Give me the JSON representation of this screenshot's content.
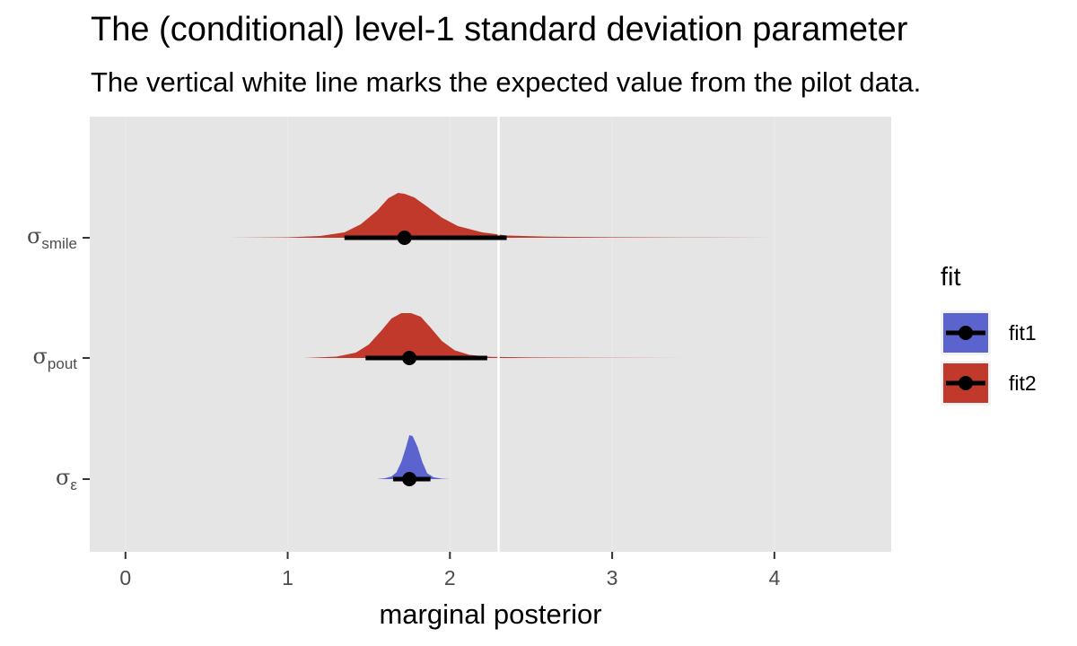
{
  "chart_data": {
    "type": "ridgeline",
    "title": "The (conditional) level-1 standard deviation parameter",
    "subtitle": "The vertical white line marks the expected value from the pilot data.",
    "xlabel": "marginal posterior",
    "ylabel": "",
    "xlim": [
      -0.22,
      4.72
    ],
    "x_ticks": [
      0,
      1,
      2,
      3,
      4
    ],
    "reference_line": 2.3,
    "legend": {
      "title": "fit",
      "position": "right",
      "entries": [
        {
          "name": "fit1",
          "color": "#5b63cf"
        },
        {
          "name": "fit2",
          "color": "#c1392b"
        }
      ]
    },
    "rows": [
      {
        "label_main": "σ",
        "label_sub": "smile",
        "fit": "fit2",
        "color": "#c1392b",
        "point": 1.72,
        "interval": [
          1.35,
          2.35
        ],
        "density_x": [
          0.6,
          1.0,
          1.2,
          1.35,
          1.45,
          1.55,
          1.62,
          1.68,
          1.72,
          1.78,
          1.85,
          1.95,
          2.05,
          2.2,
          2.35,
          2.6,
          3.0,
          3.3,
          3.6,
          4.0
        ],
        "density_height": [
          0.0,
          0.01,
          0.04,
          0.12,
          0.3,
          0.6,
          0.88,
          1.0,
          0.98,
          0.9,
          0.72,
          0.45,
          0.26,
          0.12,
          0.05,
          0.025,
          0.012,
          0.008,
          0.004,
          0.0
        ]
      },
      {
        "label_main": "σ",
        "label_sub": "pout",
        "fit": "fit2",
        "color": "#c1392b",
        "point": 1.75,
        "interval": [
          1.48,
          2.23
        ],
        "density_x": [
          1.1,
          1.3,
          1.42,
          1.5,
          1.58,
          1.64,
          1.7,
          1.76,
          1.82,
          1.88,
          1.95,
          2.03,
          2.12,
          2.25,
          2.5,
          2.9,
          3.2,
          3.45
        ],
        "density_height": [
          0.0,
          0.03,
          0.12,
          0.3,
          0.62,
          0.88,
          1.0,
          1.0,
          0.92,
          0.68,
          0.38,
          0.17,
          0.07,
          0.025,
          0.012,
          0.006,
          0.003,
          0.0
        ]
      },
      {
        "label_main": "σ",
        "label_sub": "ε",
        "fit": "fit1",
        "color": "#5b63cf",
        "point": 1.75,
        "interval": [
          1.65,
          1.88
        ],
        "density_x": [
          1.55,
          1.6,
          1.64,
          1.67,
          1.7,
          1.73,
          1.75,
          1.77,
          1.8,
          1.83,
          1.86,
          1.9,
          1.95,
          2.0
        ],
        "density_height": [
          0.0,
          0.02,
          0.06,
          0.15,
          0.38,
          0.72,
          0.98,
          0.96,
          0.72,
          0.38,
          0.13,
          0.04,
          0.01,
          0.0
        ]
      }
    ]
  }
}
